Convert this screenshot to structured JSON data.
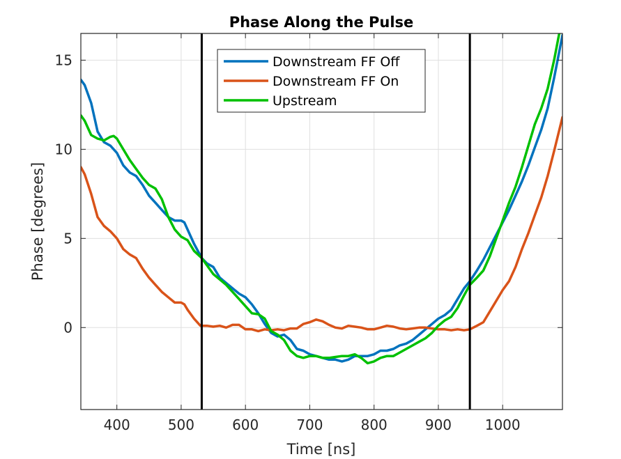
{
  "chart_data": {
    "type": "line",
    "title": "Phase Along the Pulse",
    "xlabel": "Time [ns]",
    "ylabel": "Phase [degrees]",
    "xlim": [
      344,
      1093
    ],
    "ylim": [
      -4.6,
      16.5
    ],
    "xticks": [
      400,
      500,
      600,
      700,
      800,
      900,
      1000
    ],
    "yticks": [
      0,
      5,
      10,
      15
    ],
    "grid": true,
    "legend_position": "top-center",
    "vertical_lines": [
      532,
      949
    ],
    "series": [
      {
        "name": "Downstream FF Off",
        "color": "#0072BD",
        "points": [
          [
            344,
            13.9
          ],
          [
            350,
            13.6
          ],
          [
            360,
            12.6
          ],
          [
            370,
            11.0
          ],
          [
            380,
            10.4
          ],
          [
            390,
            10.2
          ],
          [
            400,
            9.8
          ],
          [
            410,
            9.1
          ],
          [
            420,
            8.7
          ],
          [
            430,
            8.5
          ],
          [
            440,
            8.0
          ],
          [
            450,
            7.4
          ],
          [
            460,
            7.0
          ],
          [
            470,
            6.6
          ],
          [
            480,
            6.2
          ],
          [
            490,
            6.0
          ],
          [
            500,
            6.0
          ],
          [
            505,
            5.9
          ],
          [
            510,
            5.5
          ],
          [
            520,
            4.7
          ],
          [
            532,
            3.9
          ],
          [
            540,
            3.6
          ],
          [
            550,
            3.4
          ],
          [
            560,
            2.8
          ],
          [
            570,
            2.5
          ],
          [
            580,
            2.2
          ],
          [
            590,
            1.9
          ],
          [
            600,
            1.7
          ],
          [
            610,
            1.3
          ],
          [
            620,
            0.8
          ],
          [
            630,
            0.2
          ],
          [
            640,
            -0.3
          ],
          [
            650,
            -0.5
          ],
          [
            660,
            -0.4
          ],
          [
            670,
            -0.7
          ],
          [
            680,
            -1.2
          ],
          [
            690,
            -1.3
          ],
          [
            700,
            -1.5
          ],
          [
            710,
            -1.6
          ],
          [
            720,
            -1.7
          ],
          [
            730,
            -1.8
          ],
          [
            740,
            -1.8
          ],
          [
            750,
            -1.9
          ],
          [
            760,
            -1.8
          ],
          [
            770,
            -1.6
          ],
          [
            780,
            -1.6
          ],
          [
            790,
            -1.6
          ],
          [
            800,
            -1.5
          ],
          [
            810,
            -1.3
          ],
          [
            820,
            -1.3
          ],
          [
            830,
            -1.2
          ],
          [
            840,
            -1.0
          ],
          [
            850,
            -0.9
          ],
          [
            860,
            -0.7
          ],
          [
            870,
            -0.4
          ],
          [
            880,
            -0.1
          ],
          [
            890,
            0.2
          ],
          [
            900,
            0.5
          ],
          [
            910,
            0.7
          ],
          [
            920,
            1.0
          ],
          [
            930,
            1.6
          ],
          [
            940,
            2.2
          ],
          [
            949,
            2.6
          ],
          [
            960,
            3.2
          ],
          [
            970,
            3.8
          ],
          [
            980,
            4.5
          ],
          [
            990,
            5.2
          ],
          [
            1000,
            5.9
          ],
          [
            1010,
            6.6
          ],
          [
            1020,
            7.4
          ],
          [
            1030,
            8.2
          ],
          [
            1040,
            9.1
          ],
          [
            1050,
            10.1
          ],
          [
            1060,
            11.1
          ],
          [
            1070,
            12.3
          ],
          [
            1080,
            14.0
          ],
          [
            1093,
            16.4
          ]
        ]
      },
      {
        "name": "Downstream FF On",
        "color": "#D95319",
        "points": [
          [
            344,
            9.0
          ],
          [
            350,
            8.6
          ],
          [
            360,
            7.5
          ],
          [
            370,
            6.2
          ],
          [
            380,
            5.7
          ],
          [
            390,
            5.4
          ],
          [
            400,
            5.0
          ],
          [
            410,
            4.4
          ],
          [
            420,
            4.1
          ],
          [
            430,
            3.9
          ],
          [
            440,
            3.3
          ],
          [
            450,
            2.8
          ],
          [
            460,
            2.4
          ],
          [
            470,
            2.0
          ],
          [
            480,
            1.7
          ],
          [
            490,
            1.4
          ],
          [
            500,
            1.4
          ],
          [
            505,
            1.3
          ],
          [
            510,
            1.0
          ],
          [
            520,
            0.5
          ],
          [
            530,
            0.1
          ],
          [
            540,
            0.1
          ],
          [
            550,
            0.05
          ],
          [
            560,
            0.1
          ],
          [
            570,
            0.0
          ],
          [
            580,
            0.15
          ],
          [
            590,
            0.15
          ],
          [
            600,
            -0.1
          ],
          [
            610,
            -0.1
          ],
          [
            620,
            -0.2
          ],
          [
            630,
            -0.1
          ],
          [
            640,
            -0.15
          ],
          [
            650,
            -0.1
          ],
          [
            660,
            -0.15
          ],
          [
            670,
            -0.05
          ],
          [
            680,
            -0.05
          ],
          [
            690,
            0.2
          ],
          [
            700,
            0.3
          ],
          [
            710,
            0.45
          ],
          [
            720,
            0.35
          ],
          [
            730,
            0.15
          ],
          [
            740,
            0.0
          ],
          [
            750,
            -0.05
          ],
          [
            760,
            0.1
          ],
          [
            770,
            0.05
          ],
          [
            780,
            0.0
          ],
          [
            790,
            -0.1
          ],
          [
            800,
            -0.1
          ],
          [
            810,
            0.0
          ],
          [
            820,
            0.1
          ],
          [
            830,
            0.05
          ],
          [
            840,
            -0.05
          ],
          [
            850,
            -0.1
          ],
          [
            860,
            -0.05
          ],
          [
            870,
            0.0
          ],
          [
            880,
            0.0
          ],
          [
            890,
            -0.05
          ],
          [
            900,
            -0.1
          ],
          [
            910,
            -0.1
          ],
          [
            920,
            -0.15
          ],
          [
            930,
            -0.1
          ],
          [
            940,
            -0.15
          ],
          [
            949,
            -0.1
          ],
          [
            960,
            0.1
          ],
          [
            970,
            0.3
          ],
          [
            980,
            0.9
          ],
          [
            990,
            1.5
          ],
          [
            1000,
            2.1
          ],
          [
            1010,
            2.6
          ],
          [
            1020,
            3.4
          ],
          [
            1030,
            4.4
          ],
          [
            1040,
            5.3
          ],
          [
            1050,
            6.3
          ],
          [
            1060,
            7.3
          ],
          [
            1070,
            8.5
          ],
          [
            1080,
            9.9
          ],
          [
            1093,
            11.8
          ]
        ]
      },
      {
        "name": "Upstream",
        "color": "#00C000",
        "points": [
          [
            344,
            11.9
          ],
          [
            350,
            11.6
          ],
          [
            360,
            10.8
          ],
          [
            370,
            10.6
          ],
          [
            380,
            10.5
          ],
          [
            390,
            10.7
          ],
          [
            395,
            10.75
          ],
          [
            400,
            10.6
          ],
          [
            410,
            10.0
          ],
          [
            420,
            9.4
          ],
          [
            430,
            8.9
          ],
          [
            440,
            8.4
          ],
          [
            450,
            8.0
          ],
          [
            460,
            7.8
          ],
          [
            470,
            7.2
          ],
          [
            480,
            6.2
          ],
          [
            490,
            5.5
          ],
          [
            500,
            5.1
          ],
          [
            510,
            4.9
          ],
          [
            520,
            4.3
          ],
          [
            532,
            3.9
          ],
          [
            540,
            3.5
          ],
          [
            550,
            3.0
          ],
          [
            560,
            2.7
          ],
          [
            570,
            2.4
          ],
          [
            580,
            2.0
          ],
          [
            590,
            1.6
          ],
          [
            600,
            1.2
          ],
          [
            610,
            0.8
          ],
          [
            620,
            0.75
          ],
          [
            630,
            0.5
          ],
          [
            640,
            -0.2
          ],
          [
            650,
            -0.4
          ],
          [
            660,
            -0.7
          ],
          [
            670,
            -1.3
          ],
          [
            680,
            -1.6
          ],
          [
            690,
            -1.7
          ],
          [
            700,
            -1.6
          ],
          [
            710,
            -1.6
          ],
          [
            720,
            -1.7
          ],
          [
            730,
            -1.7
          ],
          [
            740,
            -1.65
          ],
          [
            750,
            -1.6
          ],
          [
            760,
            -1.6
          ],
          [
            770,
            -1.5
          ],
          [
            780,
            -1.7
          ],
          [
            790,
            -2.0
          ],
          [
            800,
            -1.9
          ],
          [
            810,
            -1.7
          ],
          [
            820,
            -1.6
          ],
          [
            830,
            -1.6
          ],
          [
            840,
            -1.4
          ],
          [
            850,
            -1.2
          ],
          [
            860,
            -1.0
          ],
          [
            870,
            -0.8
          ],
          [
            880,
            -0.6
          ],
          [
            890,
            -0.3
          ],
          [
            900,
            0.1
          ],
          [
            910,
            0.4
          ],
          [
            920,
            0.6
          ],
          [
            930,
            1.1
          ],
          [
            940,
            1.8
          ],
          [
            949,
            2.4
          ],
          [
            960,
            2.8
          ],
          [
            970,
            3.2
          ],
          [
            980,
            4.0
          ],
          [
            990,
            5.0
          ],
          [
            1000,
            6.0
          ],
          [
            1010,
            7.0
          ],
          [
            1020,
            7.9
          ],
          [
            1030,
            9.0
          ],
          [
            1040,
            10.2
          ],
          [
            1050,
            11.4
          ],
          [
            1060,
            12.3
          ],
          [
            1070,
            13.4
          ],
          [
            1080,
            15.0
          ],
          [
            1088,
            16.5
          ]
        ]
      }
    ]
  }
}
